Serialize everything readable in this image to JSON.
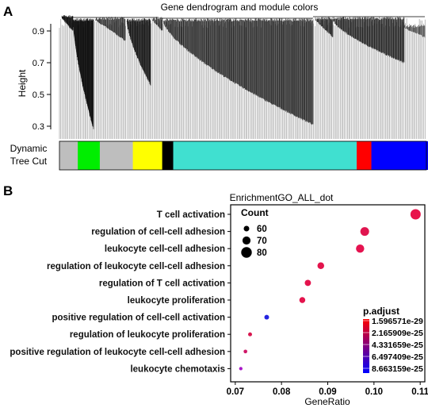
{
  "panel_a": {
    "letter": "A",
    "title": "Gene dendrogram and module colors",
    "ylabel": "Height",
    "yticks": [
      "0.9",
      "0.7",
      "0.5",
      "0.3"
    ],
    "colorbar_label_1": "Dynamic",
    "colorbar_label_2": "Tree Cut",
    "modules": [
      {
        "color": "#bebebe",
        "width": 0.05
      },
      {
        "color": "#00ee00",
        "width": 0.06
      },
      {
        "color": "#bebebe",
        "width": 0.09
      },
      {
        "color": "#ffff00",
        "width": 0.08
      },
      {
        "color": "#000000",
        "width": 0.03
      },
      {
        "color": "#40e0d0",
        "width": 0.5
      },
      {
        "color": "#ff0000",
        "width": 0.04
      },
      {
        "color": "#0000ff",
        "width": 0.17
      },
      {
        "color": "#a52a2a",
        "width": 0.11
      },
      {
        "color": "#bebebe",
        "width": 0.02
      }
    ]
  },
  "chart_data": {
    "type": "scatter",
    "panel_letter": "B",
    "title": "EnrichmentGO_ALL_dot",
    "xlabel": "GeneRatio",
    "ylabel": "",
    "xlim": [
      0.069,
      0.111
    ],
    "xticks": [
      "0.07",
      "0.08",
      "0.09",
      "0.10",
      "0.11"
    ],
    "xtick_values": [
      0.07,
      0.08,
      0.09,
      0.1,
      0.11
    ],
    "categories": [
      "T cell activation",
      "regulation of cell-cell adhesion",
      "leukocyte cell-cell adhesion",
      "regulation of leukocyte cell-cell adhesion",
      "regulation of T cell activation",
      "leukocyte proliferation",
      "positive regulation of cell-cell activation",
      "regulation of leukocyte proliferation",
      "positive regulation of leukocyte cell-cell adhesion",
      "leukocyte chemotaxis"
    ],
    "points": [
      {
        "term": "T cell activation",
        "gene_ratio": 0.109,
        "count": 76,
        "color": "#e8134b"
      },
      {
        "term": "regulation of cell-cell adhesion",
        "gene_ratio": 0.098,
        "count": 70,
        "color": "#e0154f"
      },
      {
        "term": "leukocyte cell-cell adhesion",
        "gene_ratio": 0.097,
        "count": 68,
        "color": "#e51350"
      },
      {
        "term": "regulation of leukocyte cell-cell adhesion",
        "gene_ratio": 0.0885,
        "count": 62,
        "color": "#e3144c"
      },
      {
        "term": "regulation of T cell activation",
        "gene_ratio": 0.0857,
        "count": 60,
        "color": "#e4134d"
      },
      {
        "term": "leukocyte proliferation",
        "gene_ratio": 0.0845,
        "count": 59,
        "color": "#e4144d"
      },
      {
        "term": "positive regulation of cell-cell activation",
        "gene_ratio": 0.0768,
        "count": 54,
        "color": "#2424e0"
      },
      {
        "term": "regulation of leukocyte proliferation",
        "gene_ratio": 0.0732,
        "count": 51,
        "color": "#d8174f"
      },
      {
        "term": "positive regulation of leukocyte cell-cell adhesion",
        "gene_ratio": 0.0722,
        "count": 50,
        "color": "#cf1768"
      },
      {
        "term": "leukocyte chemotaxis",
        "gene_ratio": 0.0712,
        "count": 49,
        "color": "#a818c8"
      }
    ],
    "size_legend": {
      "title": "Count",
      "entries": [
        {
          "label": "60",
          "value": 60
        },
        {
          "label": "70",
          "value": 70
        },
        {
          "label": "80",
          "value": 80
        }
      ]
    },
    "color_legend": {
      "title": "p.adjust",
      "labels": [
        "1.596571e-29",
        "2.165909e-25",
        "4.331659e-25",
        "6.497409e-25",
        "8.663159e-25"
      ],
      "gradient": [
        "#ff0000",
        "#0000ff"
      ]
    },
    "grid": false,
    "legend_placement": "right"
  }
}
